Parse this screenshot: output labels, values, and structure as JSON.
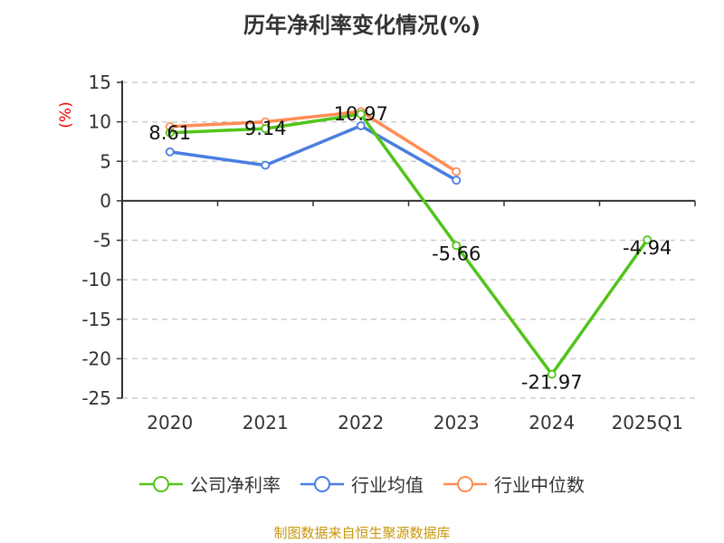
{
  "chart_data": {
    "type": "line",
    "title": "历年净利率变化情况(%)",
    "ylabel": "(%)",
    "xlabel": "",
    "categories": [
      "2020",
      "2021",
      "2022",
      "2023",
      "2024",
      "2025Q1"
    ],
    "ylim": [
      -25,
      15
    ],
    "yticks": [
      15,
      10,
      5,
      0,
      -5,
      -10,
      -15,
      -20,
      -25
    ],
    "grid": true,
    "legend_position": "bottom",
    "series": [
      {
        "name": "公司净利率",
        "color": "#52c41a",
        "values": [
          8.61,
          9.14,
          10.97,
          -5.66,
          -21.97,
          -4.94
        ],
        "labels": [
          "8.61",
          "9.14",
          "10.97",
          "-5.66",
          "-21.97",
          "-4.94"
        ]
      },
      {
        "name": "行业均值",
        "color": "#4a7ee0",
        "values": [
          6.2,
          4.5,
          9.5,
          2.6,
          null,
          null
        ]
      },
      {
        "name": "行业中位数",
        "color": "#ff8c55",
        "values": [
          9.4,
          10.0,
          11.3,
          3.7,
          null,
          null
        ]
      }
    ]
  },
  "source": "制图数据来自恒生聚源数据库"
}
